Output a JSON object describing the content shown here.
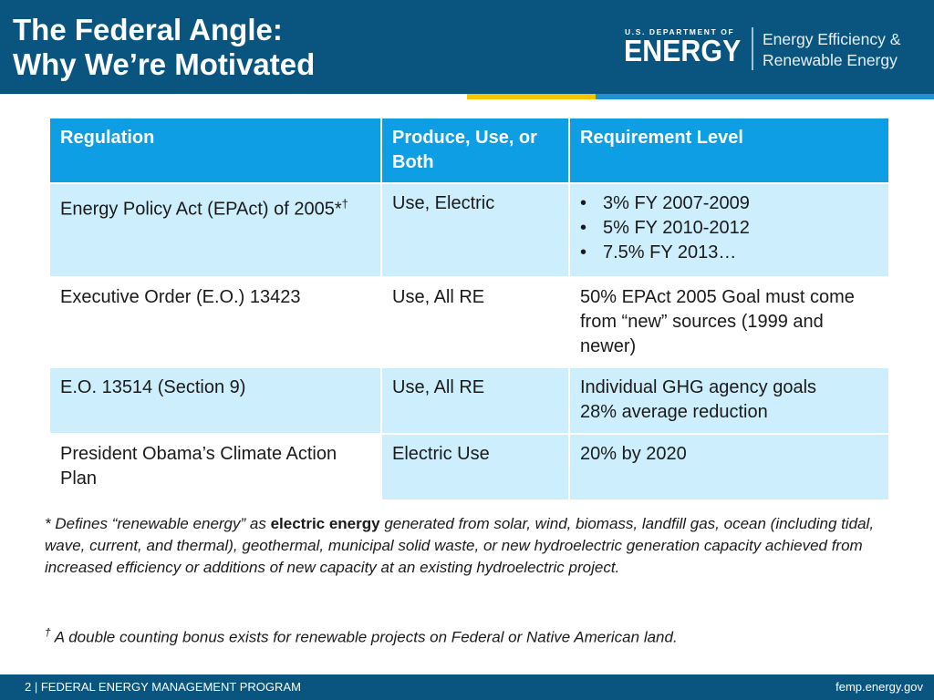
{
  "slide": {
    "title_line1": "The Federal Angle:",
    "title_line2": "Why We’re Motivated"
  },
  "logo": {
    "dept_line": "U.S. DEPARTMENT OF",
    "dept_name": "ENERGY",
    "office_line1": "Energy Efficiency &",
    "office_line2": "Renewable Energy"
  },
  "colors": {
    "header": "#0a5580",
    "table_header": "#0d9ee3",
    "row_light": "#cdeefd",
    "accent_yellow": "#f5c400",
    "accent_blue": "#1e93cf"
  },
  "table": {
    "headers": [
      "Regulation",
      "Produce, Use, or Both",
      "Requirement Level"
    ],
    "rows": [
      {
        "regulation_main": "Energy Policy Act (EPAct) of 2005*",
        "regulation_sup": "†",
        "use": "Use, Electric",
        "requirements": [
          "3% FY 2007-2009",
          "5% FY 2010-2012",
          "7.5% FY 2013…"
        ]
      },
      {
        "regulation": "Executive Order (E.O.) 13423",
        "use": "Use, All RE",
        "requirement": "50% EPAct 2005 Goal must come from “new” sources (1999 and newer)"
      },
      {
        "regulation": "E.O. 13514 (Section 9)",
        "use": "Use, All RE",
        "requirement_line1": "Individual GHG agency goals",
        "requirement_line2": "28% average reduction"
      },
      {
        "regulation": "President Obama’s Climate Action Plan",
        "use": "Electric Use",
        "requirement": "20% by 2020"
      }
    ]
  },
  "footnotes": {
    "star_prefix": "* Defines “renewable energy” as ",
    "star_bold": "electric energy",
    "star_rest": " generated from solar, wind, biomass, landfill gas, ocean (including tidal, wave, current, and thermal), geothermal, municipal solid waste, or new hydroelectric generation capacity achieved from increased efficiency or additions of new capacity at an existing hydroelectric project.",
    "dagger_mark": "†",
    "dagger_text": " A double counting bonus exists for renewable projects on Federal or Native American land."
  },
  "footer": {
    "left": "2 | FEDERAL ENERGY MANAGEMENT PROGRAM",
    "right": "femp.energy.gov"
  }
}
